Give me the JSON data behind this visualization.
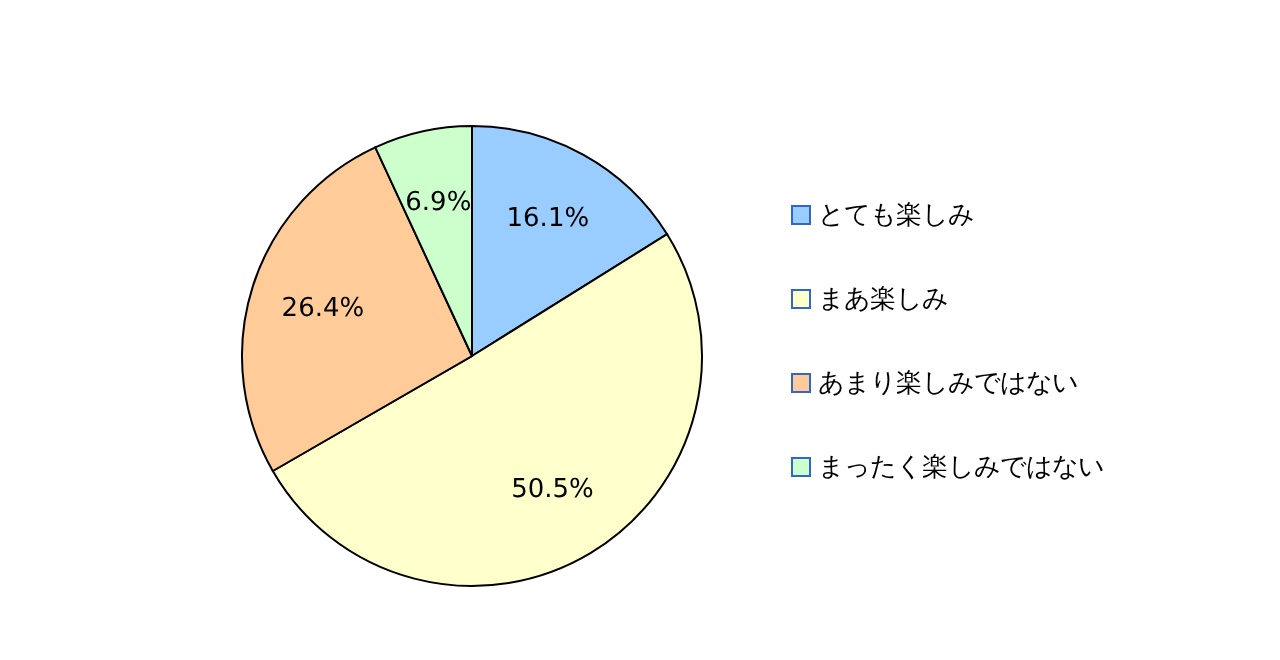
{
  "chart_data": {
    "type": "pie",
    "categories": [
      "とても楽しみ",
      "まあ楽しみ",
      "あまり楽しみではない",
      "まったく楽しみではない"
    ],
    "values": [
      16.1,
      50.5,
      26.4,
      6.9
    ],
    "value_labels": [
      "16.1%",
      "50.5%",
      "26.4%",
      "6.9%"
    ],
    "colors": [
      "#99ccff",
      "#ffffcc",
      "#ffcc99",
      "#ccffcc"
    ],
    "legend": "right"
  }
}
